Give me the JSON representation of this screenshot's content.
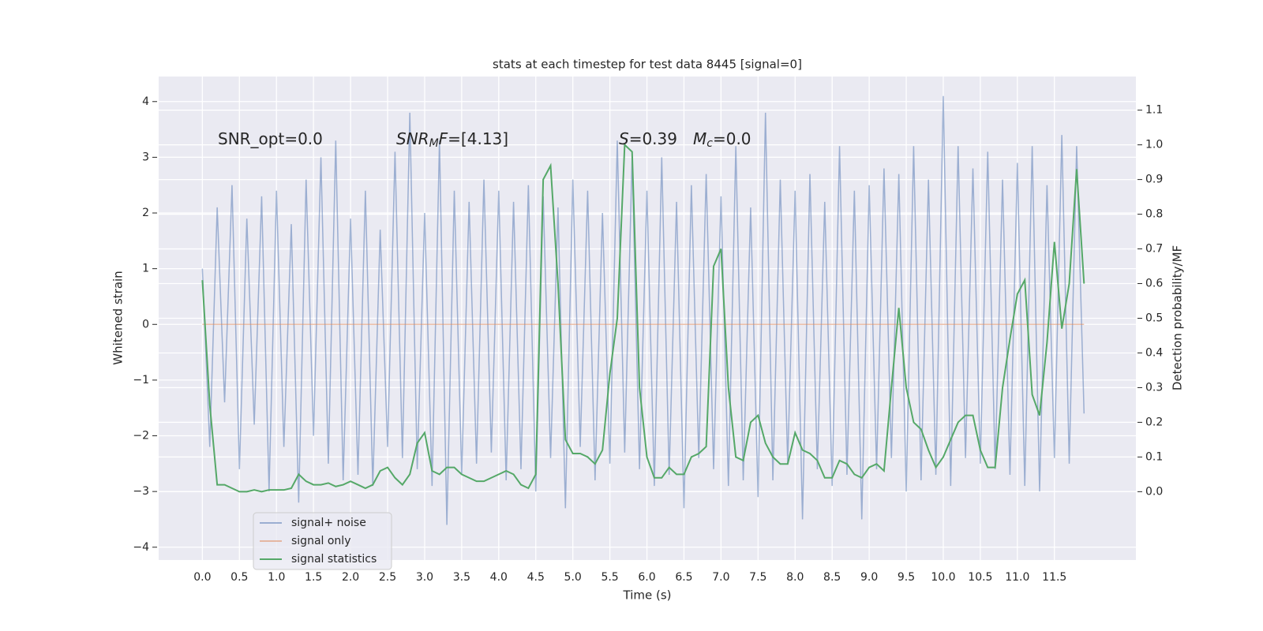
{
  "chart_data": {
    "type": "line",
    "title": "stats at each timestep for test data 8445 [signal=0]",
    "xlabel": "Time (s)",
    "ylabel": "Whitened strain",
    "y2label": "Detection probability/MF",
    "x": [
      0,
      0.1,
      0.2,
      0.3,
      0.4,
      0.5,
      0.6,
      0.7,
      0.8,
      0.9,
      1,
      1.1,
      1.2,
      1.3,
      1.4,
      1.5,
      1.6,
      1.7,
      1.8,
      1.9,
      2,
      2.1,
      2.2,
      2.3,
      2.4,
      2.5,
      2.6,
      2.7,
      2.8,
      2.9,
      3,
      3.1,
      3.2,
      3.3,
      3.4,
      3.5,
      3.6,
      3.7,
      3.8,
      3.9,
      4,
      4.1,
      4.2,
      4.3,
      4.4,
      4.5,
      4.6,
      4.7,
      4.8,
      4.9,
      5,
      5.1,
      5.2,
      5.3,
      5.4,
      5.5,
      5.6,
      5.7,
      5.8,
      5.9,
      6,
      6.1,
      6.2,
      6.3,
      6.4,
      6.5,
      6.6,
      6.7,
      6.8,
      6.9,
      7,
      7.1,
      7.2,
      7.3,
      7.4,
      7.5,
      7.6,
      7.7,
      7.8,
      7.9,
      8,
      8.1,
      8.2,
      8.3,
      8.4,
      8.5,
      8.6,
      8.7,
      8.8,
      8.9,
      9,
      9.1,
      9.2,
      9.3,
      9.4,
      9.5,
      9.6,
      9.7,
      9.8,
      9.9,
      10,
      10.1,
      10.2,
      10.3,
      10.4,
      10.5,
      10.6,
      10.7,
      10.8,
      10.9,
      11,
      11.1,
      11.2,
      11.3,
      11.4,
      11.5,
      11.6,
      11.7,
      11.8,
      11.9
    ],
    "series": [
      {
        "name": "signal+ noise",
        "color": "#4c72b0",
        "opacity": 0.5,
        "values": [
          1.0,
          -2.2,
          2.1,
          -1.4,
          2.5,
          -2.6,
          1.9,
          -1.8,
          2.3,
          -3.0,
          2.4,
          -2.2,
          1.8,
          -3.2,
          2.6,
          -2.0,
          3.0,
          -2.5,
          3.3,
          -2.8,
          1.9,
          -2.7,
          2.4,
          -2.9,
          1.7,
          -2.2,
          3.1,
          -2.4,
          3.8,
          -2.6,
          2.0,
          -2.9,
          3.3,
          -3.6,
          2.4,
          -2.7,
          2.2,
          -2.5,
          2.6,
          -2.3,
          2.4,
          -2.8,
          2.2,
          -2.6,
          2.5,
          -3.0,
          2.3,
          -2.4,
          2.1,
          -3.3,
          2.6,
          -2.2,
          2.4,
          -2.8,
          2.0,
          -2.5,
          3.3,
          -2.3,
          3.0,
          -2.6,
          2.4,
          -2.9,
          3.0,
          -2.7,
          2.2,
          -3.3,
          2.5,
          -2.4,
          2.7,
          -2.6,
          2.3,
          -2.9,
          3.2,
          -2.8,
          2.1,
          -3.1,
          3.8,
          -2.8,
          2.6,
          -2.5,
          2.4,
          -3.5,
          2.7,
          -2.6,
          2.2,
          -2.9,
          3.2,
          -2.7,
          2.4,
          -3.5,
          2.5,
          -2.6,
          2.8,
          -2.4,
          2.7,
          -3.0,
          3.2,
          -2.8,
          2.6,
          -2.7,
          4.1,
          -2.9,
          3.2,
          -2.4,
          2.8,
          -2.5,
          3.1,
          -2.6,
          2.6,
          -2.7,
          2.9,
          -2.9,
          3.2,
          -3.0,
          2.5,
          -2.4,
          3.4,
          -2.5,
          3.2,
          -1.6
        ]
      },
      {
        "name": "signal only",
        "color": "#dd8452",
        "opacity": 0.5,
        "values": [
          0,
          0,
          0,
          0,
          0,
          0,
          0,
          0,
          0,
          0,
          0,
          0,
          0,
          0,
          0,
          0,
          0,
          0,
          0,
          0,
          0,
          0,
          0,
          0,
          0,
          0,
          0,
          0,
          0,
          0,
          0,
          0,
          0,
          0,
          0,
          0,
          0,
          0,
          0,
          0,
          0,
          0,
          0,
          0,
          0,
          0,
          0,
          0,
          0,
          0,
          0,
          0,
          0,
          0,
          0,
          0,
          0,
          0,
          0,
          0,
          0,
          0,
          0,
          0,
          0,
          0,
          0,
          0,
          0,
          0,
          0,
          0,
          0,
          0,
          0,
          0,
          0,
          0,
          0,
          0,
          0,
          0,
          0,
          0,
          0,
          0,
          0,
          0,
          0,
          0,
          0,
          0,
          0,
          0,
          0,
          0,
          0,
          0,
          0,
          0,
          0,
          0,
          0,
          0,
          0,
          0,
          0,
          0,
          0,
          0,
          0,
          0,
          0,
          0,
          0,
          0,
          0,
          0,
          0,
          0
        ]
      },
      {
        "name": "signal statistics",
        "color": "#55a868",
        "opacity": 1,
        "axis": "y2",
        "values": [
          0.61,
          0.25,
          0.02,
          0.02,
          0.01,
          0.0,
          0.0,
          0.005,
          0.0,
          0.005,
          0.005,
          0.005,
          0.01,
          0.05,
          0.03,
          0.02,
          0.02,
          0.025,
          0.015,
          0.02,
          0.03,
          0.02,
          0.01,
          0.02,
          0.06,
          0.07,
          0.04,
          0.02,
          0.05,
          0.14,
          0.17,
          0.06,
          0.05,
          0.07,
          0.07,
          0.05,
          0.04,
          0.03,
          0.03,
          0.04,
          0.05,
          0.06,
          0.05,
          0.02,
          0.01,
          0.05,
          0.9,
          0.94,
          0.6,
          0.15,
          0.11,
          0.11,
          0.1,
          0.08,
          0.12,
          0.34,
          0.5,
          1.0,
          0.98,
          0.3,
          0.1,
          0.04,
          0.04,
          0.07,
          0.05,
          0.05,
          0.1,
          0.11,
          0.13,
          0.65,
          0.7,
          0.3,
          0.1,
          0.09,
          0.2,
          0.22,
          0.14,
          0.1,
          0.08,
          0.08,
          0.17,
          0.12,
          0.11,
          0.09,
          0.04,
          0.04,
          0.09,
          0.08,
          0.05,
          0.04,
          0.07,
          0.08,
          0.06,
          0.3,
          0.53,
          0.3,
          0.2,
          0.18,
          0.12,
          0.07,
          0.1,
          0.15,
          0.2,
          0.22,
          0.22,
          0.12,
          0.07,
          0.07,
          0.3,
          0.44,
          0.57,
          0.61,
          0.28,
          0.22,
          0.43,
          0.72,
          0.47,
          0.6,
          0.93,
          0.6
        ]
      }
    ],
    "xlim": [
      -0.59,
      12.6
    ],
    "xticks": [
      {
        "value": 0,
        "label": "0.0"
      },
      0.5,
      {
        "value": 1,
        "label": "1.0"
      },
      1.5,
      {
        "value": 2,
        "label": "2.0"
      },
      2.5,
      {
        "value": 3,
        "label": "3.0"
      },
      3.5,
      {
        "value": 4,
        "label": "4.0"
      },
      4.5,
      {
        "value": 5,
        "label": "5.0"
      },
      5.5,
      {
        "value": 6,
        "label": "6.0"
      },
      6.5,
      {
        "value": 7,
        "label": "7.0"
      },
      7.5,
      {
        "value": 8,
        "label": "8.0"
      },
      8.5,
      {
        "value": 9,
        "label": "9.0"
      },
      9.5,
      {
        "value": 10,
        "label": "10.0"
      },
      10.5,
      {
        "value": 11,
        "label": "11.0"
      },
      11.5
    ],
    "ylim": [
      -4.23,
      4.45
    ],
    "yticks": [
      {
        "value": -4,
        "label": "−4"
      },
      {
        "value": -3,
        "label": "−3"
      },
      {
        "value": -2,
        "label": "−2"
      },
      {
        "value": -1,
        "label": "−1"
      },
      0,
      1,
      2,
      3,
      4
    ],
    "y2lim": [
      -0.197,
      1.197
    ],
    "y2ticks": [
      {
        "value": 0,
        "label": "0.0"
      },
      0.1,
      0.2,
      0.3,
      0.4,
      0.5,
      0.6,
      0.7,
      0.8,
      0.9,
      {
        "value": 1,
        "label": "1.0"
      },
      1.1
    ],
    "grid": true,
    "legend": "lower left",
    "annotations": [
      {
        "parts": [
          {
            "text": "SNR_opt=0.0",
            "style": "normal"
          }
        ]
      },
      {
        "parts": [
          {
            "text": "SNR",
            "style": "italic"
          },
          {
            "text": "M",
            "style": "italic-sub"
          },
          {
            "text": "F",
            "style": "italic"
          },
          {
            "text": "=[4.13]",
            "style": "normal"
          }
        ]
      },
      {
        "parts": [
          {
            "text": "S",
            "style": "italic"
          },
          {
            "text": "=0.39",
            "style": "normal"
          }
        ]
      },
      {
        "parts": [
          {
            "text": "M",
            "style": "italic"
          },
          {
            "text": "c",
            "style": "italic-sub"
          },
          {
            "text": "=0.0",
            "style": "normal"
          }
        ]
      }
    ]
  }
}
